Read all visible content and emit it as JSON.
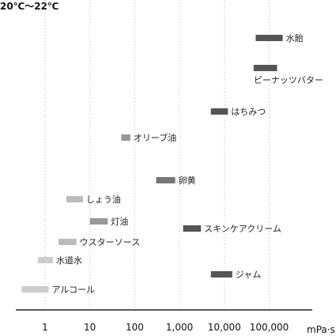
{
  "corner_label": "20℃～22℃",
  "chart_data": {
    "type": "range-bar",
    "title": "",
    "xlabel": "mPa·s",
    "xscale": "log",
    "xlim": [
      0.2,
      1000000
    ],
    "x_ticks": [
      {
        "value": 1,
        "label": "1"
      },
      {
        "value": 10,
        "label": "10"
      },
      {
        "value": 100,
        "label": "100"
      },
      {
        "value": 1000,
        "label": "1,000"
      },
      {
        "value": 10000,
        "label": "10,000"
      },
      {
        "value": 100000,
        "label": "100,000"
      }
    ],
    "grid": "vertical dotted",
    "items": [
      {
        "label": "水飴",
        "low": 50000,
        "high": 200000,
        "color": "#555555"
      },
      {
        "label": "ピーナッツバター",
        "low": 45000,
        "high": 150000,
        "color": "#555555"
      },
      {
        "label": "はちみつ",
        "low": 5000,
        "high": 12000,
        "color": "#555555"
      },
      {
        "label": "オリーブ油",
        "low": 50,
        "high": 80,
        "color": "#999999"
      },
      {
        "label": "卵黄",
        "low": 300,
        "high": 800,
        "color": "#777777"
      },
      {
        "label": "しょう油",
        "low": 3,
        "high": 7,
        "color": "#bbbbbb"
      },
      {
        "label": "灯油",
        "low": 10,
        "high": 25,
        "color": "#999999"
      },
      {
        "label": "スキンケアクリーム",
        "low": 1200,
        "high": 3000,
        "color": "#555555"
      },
      {
        "label": "ウスターソース",
        "low": 2,
        "high": 5,
        "color": "#bbbbbb"
      },
      {
        "label": "水道水",
        "low": 0.7,
        "high": 1.5,
        "color": "#cccccc"
      },
      {
        "label": "ジャム",
        "low": 5000,
        "high": 15000,
        "color": "#555555"
      },
      {
        "label": "アルコール",
        "low": 0.3,
        "high": 1.2,
        "color": "#cccccc"
      }
    ]
  }
}
